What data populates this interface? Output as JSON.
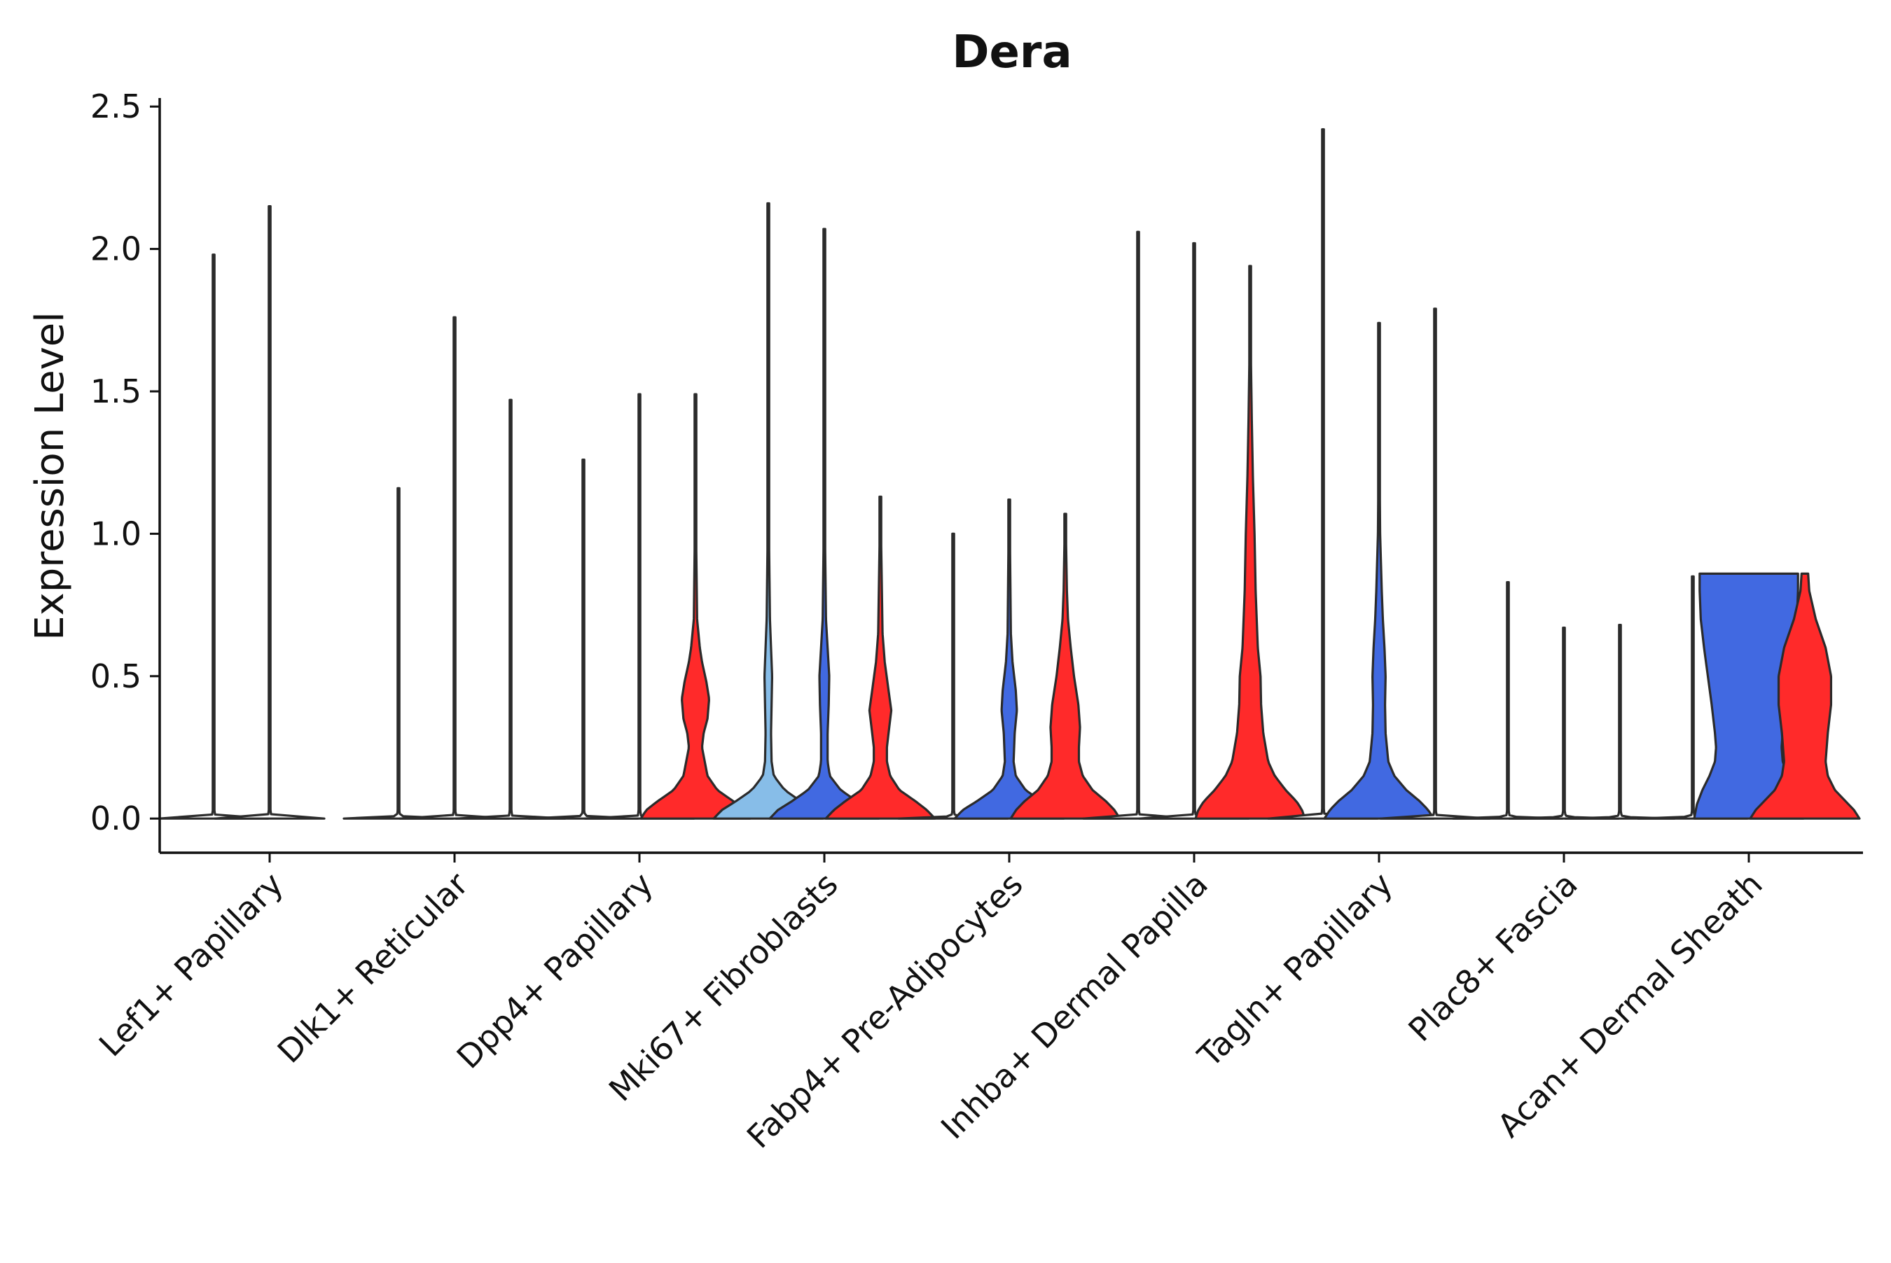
{
  "chart_data": {
    "type": "violin",
    "title": "Dera",
    "xlabel": "",
    "ylabel": "Expression Level",
    "ylim": [
      -0.12,
      2.53
    ],
    "yticks": [
      0.0,
      0.5,
      1.0,
      1.5,
      2.0,
      2.5
    ],
    "ytick_labels": [
      "0.0",
      "0.5",
      "1.0",
      "1.5",
      "2.0",
      "2.5"
    ],
    "grid": false,
    "legend": "none",
    "categories": [
      "Lef1+ Papillary",
      "Dlk1+ Reticular",
      "Dpp4+ Papillary",
      "Mki67+ Fibroblasts",
      "Fabp4+ Pre-Adipocytes",
      "Inhba+ Dermal Papilla",
      "Tagln+ Papillary",
      "Plac8+ Fascia",
      "Acan+ Dermal Sheath"
    ],
    "group_colors": [
      "#ffffff",
      "#4169e1",
      "#ff2a2a",
      "#87bde8"
    ],
    "groups_per_category": 3,
    "violins": [
      {
        "category": 0,
        "group": 0,
        "max": 1.98,
        "color": "#ffffff",
        "profile": "flat"
      },
      {
        "category": 0,
        "group": 1,
        "max": 2.15,
        "color": "#ffffff",
        "profile": "flat"
      },
      {
        "category": 1,
        "group": 0,
        "max": 1.16,
        "color": "#ffffff",
        "profile": "flat"
      },
      {
        "category": 1,
        "group": 1,
        "max": 1.76,
        "color": "#ffffff",
        "profile": "flat"
      },
      {
        "category": 1,
        "group": 2,
        "max": 1.47,
        "color": "#ffffff",
        "profile": "flat"
      },
      {
        "category": 2,
        "group": 0,
        "max": 1.26,
        "color": "#ffffff",
        "profile": "flat"
      },
      {
        "category": 2,
        "group": 1,
        "max": 1.49,
        "color": "#ffffff",
        "profile": "flat"
      },
      {
        "category": 2,
        "group": 2,
        "max": 1.49,
        "color": "#ff2a2a",
        "profile": "dpp4"
      },
      {
        "category": 3,
        "group": 0,
        "max": 2.16,
        "color": "#87bde8",
        "profile": "mki_a"
      },
      {
        "category": 3,
        "group": 1,
        "max": 2.07,
        "color": "#4169e1",
        "profile": "mki_b"
      },
      {
        "category": 3,
        "group": 2,
        "max": 1.13,
        "color": "#ff2a2a",
        "profile": "mki_c"
      },
      {
        "category": 4,
        "group": 0,
        "max": 1.0,
        "color": "#ffffff",
        "profile": "flat"
      },
      {
        "category": 4,
        "group": 1,
        "max": 1.12,
        "color": "#4169e1",
        "profile": "fab_b"
      },
      {
        "category": 4,
        "group": 2,
        "max": 1.07,
        "color": "#ff2a2a",
        "profile": "fab_c"
      },
      {
        "category": 5,
        "group": 0,
        "max": 2.06,
        "color": "#ffffff",
        "profile": "flat"
      },
      {
        "category": 5,
        "group": 1,
        "max": 2.02,
        "color": "#ffffff",
        "profile": "flat"
      },
      {
        "category": 5,
        "group": 2,
        "max": 1.94,
        "color": "#ff2a2a",
        "profile": "inh_c"
      },
      {
        "category": 6,
        "group": 0,
        "max": 2.42,
        "color": "#ffffff",
        "profile": "flat"
      },
      {
        "category": 6,
        "group": 1,
        "max": 1.74,
        "color": "#4169e1",
        "profile": "tag_b"
      },
      {
        "category": 6,
        "group": 2,
        "max": 1.79,
        "color": "#ffffff",
        "profile": "flat"
      },
      {
        "category": 7,
        "group": 0,
        "max": 0.83,
        "color": "#ffffff",
        "profile": "flat"
      },
      {
        "category": 7,
        "group": 1,
        "max": 0.67,
        "color": "#ffffff",
        "profile": "flat"
      },
      {
        "category": 7,
        "group": 2,
        "max": 0.68,
        "color": "#ffffff",
        "profile": "flat"
      },
      {
        "category": 8,
        "group": 0,
        "max": 0.85,
        "color": "#ffffff",
        "profile": "flat"
      },
      {
        "category": 8,
        "group": 1,
        "max": 0.86,
        "color": "#4169e1",
        "profile": "acan_b"
      },
      {
        "category": 8,
        "group": 2,
        "max": 0.86,
        "color": "#ff2a2a",
        "profile": "acan_c"
      }
    ],
    "profiles": {
      "flat": [
        [
          0,
          1.0
        ],
        [
          0.003,
          0.25
        ],
        [
          0.01,
          0.03
        ],
        [
          0.03,
          0.012
        ],
        [
          1.0,
          0.012
        ]
      ],
      "dpp4": [
        [
          0,
          1.0
        ],
        [
          0.03,
          0.9
        ],
        [
          0.06,
          0.7
        ],
        [
          0.1,
          0.4
        ],
        [
          0.15,
          0.22
        ],
        [
          0.25,
          0.12
        ],
        [
          0.3,
          0.15
        ],
        [
          0.35,
          0.22
        ],
        [
          0.42,
          0.25
        ],
        [
          0.48,
          0.2
        ],
        [
          0.55,
          0.12
        ],
        [
          0.6,
          0.08
        ],
        [
          0.7,
          0.03
        ],
        [
          1.0,
          0.012
        ]
      ],
      "mki_a": [
        [
          0,
          1.0
        ],
        [
          0.03,
          0.85
        ],
        [
          0.06,
          0.6
        ],
        [
          0.1,
          0.3
        ],
        [
          0.15,
          0.1
        ],
        [
          0.2,
          0.06
        ],
        [
          0.3,
          0.05
        ],
        [
          0.4,
          0.06
        ],
        [
          0.5,
          0.07
        ],
        [
          0.6,
          0.05
        ],
        [
          0.7,
          0.03
        ],
        [
          1.0,
          0.012
        ]
      ],
      "mki_b": [
        [
          0,
          1.0
        ],
        [
          0.03,
          0.85
        ],
        [
          0.06,
          0.6
        ],
        [
          0.1,
          0.3
        ],
        [
          0.15,
          0.1
        ],
        [
          0.2,
          0.06
        ],
        [
          0.3,
          0.06
        ],
        [
          0.4,
          0.08
        ],
        [
          0.5,
          0.09
        ],
        [
          0.6,
          0.06
        ],
        [
          0.7,
          0.03
        ],
        [
          1.0,
          0.012
        ]
      ],
      "mki_c": [
        [
          0,
          1.0
        ],
        [
          0.03,
          0.85
        ],
        [
          0.06,
          0.65
        ],
        [
          0.1,
          0.35
        ],
        [
          0.15,
          0.18
        ],
        [
          0.2,
          0.12
        ],
        [
          0.25,
          0.12
        ],
        [
          0.3,
          0.15
        ],
        [
          0.38,
          0.2
        ],
        [
          0.45,
          0.15
        ],
        [
          0.55,
          0.08
        ],
        [
          0.65,
          0.04
        ],
        [
          1.0,
          0.012
        ]
      ],
      "fab_b": [
        [
          0,
          1.0
        ],
        [
          0.03,
          0.85
        ],
        [
          0.06,
          0.6
        ],
        [
          0.1,
          0.3
        ],
        [
          0.15,
          0.12
        ],
        [
          0.2,
          0.08
        ],
        [
          0.3,
          0.1
        ],
        [
          0.38,
          0.14
        ],
        [
          0.45,
          0.12
        ],
        [
          0.55,
          0.06
        ],
        [
          0.65,
          0.03
        ],
        [
          1.0,
          0.012
        ]
      ],
      "fab_c": [
        [
          0,
          1.0
        ],
        [
          0.03,
          0.9
        ],
        [
          0.06,
          0.75
        ],
        [
          0.1,
          0.5
        ],
        [
          0.15,
          0.32
        ],
        [
          0.2,
          0.25
        ],
        [
          0.25,
          0.25
        ],
        [
          0.32,
          0.27
        ],
        [
          0.4,
          0.24
        ],
        [
          0.5,
          0.16
        ],
        [
          0.6,
          0.1
        ],
        [
          0.7,
          0.05
        ],
        [
          0.8,
          0.03
        ],
        [
          1.0,
          0.012
        ]
      ],
      "inh_c": [
        [
          0,
          1.0
        ],
        [
          0.03,
          0.95
        ],
        [
          0.06,
          0.85
        ],
        [
          0.1,
          0.65
        ],
        [
          0.15,
          0.45
        ],
        [
          0.2,
          0.33
        ],
        [
          0.3,
          0.24
        ],
        [
          0.4,
          0.2
        ],
        [
          0.5,
          0.19
        ],
        [
          0.6,
          0.14
        ],
        [
          0.8,
          0.1
        ],
        [
          1.0,
          0.08
        ],
        [
          1.2,
          0.05
        ],
        [
          1.4,
          0.03
        ],
        [
          1.6,
          0.015
        ],
        [
          2.0,
          0.012
        ]
      ],
      "tag_b": [
        [
          0,
          1.0
        ],
        [
          0.03,
          0.9
        ],
        [
          0.06,
          0.75
        ],
        [
          0.1,
          0.5
        ],
        [
          0.15,
          0.28
        ],
        [
          0.2,
          0.17
        ],
        [
          0.3,
          0.12
        ],
        [
          0.4,
          0.11
        ],
        [
          0.5,
          0.12
        ],
        [
          0.6,
          0.1
        ],
        [
          0.7,
          0.07
        ],
        [
          0.8,
          0.05
        ],
        [
          1.0,
          0.02
        ],
        [
          1.2,
          0.012
        ]
      ],
      "acan_b": [
        [
          0,
          1.0
        ],
        [
          0.05,
          0.95
        ],
        [
          0.1,
          0.85
        ],
        [
          0.15,
          0.72
        ],
        [
          0.2,
          0.62
        ],
        [
          0.25,
          0.6
        ],
        [
          0.3,
          0.62
        ],
        [
          0.4,
          0.68
        ],
        [
          0.5,
          0.75
        ],
        [
          0.6,
          0.82
        ],
        [
          0.7,
          0.88
        ],
        [
          0.8,
          0.9
        ],
        [
          0.86,
          0.9
        ]
      ],
      "acan_c": [
        [
          0,
          1.0
        ],
        [
          0.03,
          0.9
        ],
        [
          0.06,
          0.75
        ],
        [
          0.1,
          0.55
        ],
        [
          0.15,
          0.42
        ],
        [
          0.2,
          0.38
        ],
        [
          0.3,
          0.42
        ],
        [
          0.4,
          0.48
        ],
        [
          0.5,
          0.48
        ],
        [
          0.6,
          0.38
        ],
        [
          0.7,
          0.2
        ],
        [
          0.8,
          0.08
        ],
        [
          0.86,
          0.06
        ]
      ]
    }
  }
}
